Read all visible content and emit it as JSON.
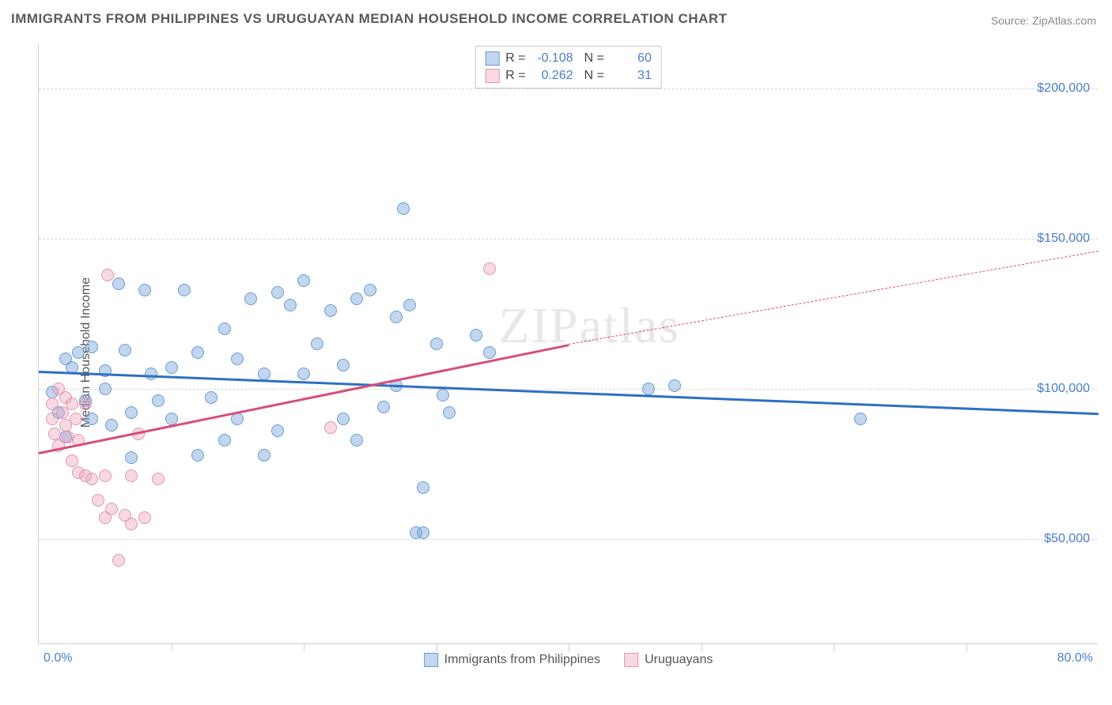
{
  "title": "IMMIGRANTS FROM PHILIPPINES VS URUGUAYAN MEDIAN HOUSEHOLD INCOME CORRELATION CHART",
  "source": {
    "label": "Source:",
    "value": "ZipAtlas.com"
  },
  "watermark": "ZIPatlas",
  "chart": {
    "type": "scatter",
    "background_color": "#ffffff",
    "grid_color": "#d8d8d8",
    "axis_color": "#cfcfcf",
    "label_color": "#4a7ec9",
    "text_color": "#555555",
    "y_axis_title": "Median Household Income",
    "xlim": [
      0,
      80
    ],
    "ylim": [
      15000,
      215000
    ],
    "x_tick_labels": {
      "left": "0.0%",
      "right": "80.0%"
    },
    "x_minor_ticks": [
      10,
      20,
      30,
      40,
      50,
      60,
      70
    ],
    "y_gridlines": [
      {
        "value": 50000,
        "label": "$50,000"
      },
      {
        "value": 100000,
        "label": "$100,000"
      },
      {
        "value": 150000,
        "label": "$150,000"
      },
      {
        "value": 200000,
        "label": "$200,000"
      }
    ],
    "series": [
      {
        "name": "Immigrants from Philippines",
        "fill_color": "rgba(120,165,216,0.45)",
        "stroke_color": "#6a9bd6",
        "trend_color": "#2e6fc4",
        "R": "-0.108",
        "N": "60",
        "trend": {
          "x1": 0,
          "y1": 106000,
          "x2": 80,
          "y2": 92000
        },
        "points": [
          [
            1,
            99000
          ],
          [
            1.5,
            92000
          ],
          [
            2,
            110000
          ],
          [
            2,
            84000
          ],
          [
            2.5,
            107000
          ],
          [
            3,
            112000
          ],
          [
            3.5,
            96000
          ],
          [
            4,
            114000
          ],
          [
            4,
            90000
          ],
          [
            5,
            100000
          ],
          [
            5,
            106000
          ],
          [
            5.5,
            88000
          ],
          [
            6,
            135000
          ],
          [
            6.5,
            113000
          ],
          [
            7,
            77000
          ],
          [
            7,
            92000
          ],
          [
            8,
            133000
          ],
          [
            8.5,
            105000
          ],
          [
            9,
            96000
          ],
          [
            10,
            107000
          ],
          [
            10,
            90000
          ],
          [
            11,
            133000
          ],
          [
            12,
            78000
          ],
          [
            12,
            112000
          ],
          [
            13,
            97000
          ],
          [
            14,
            120000
          ],
          [
            14,
            83000
          ],
          [
            15,
            110000
          ],
          [
            15,
            90000
          ],
          [
            16,
            130000
          ],
          [
            17,
            78000
          ],
          [
            17,
            105000
          ],
          [
            18,
            132000
          ],
          [
            18,
            86000
          ],
          [
            19,
            128000
          ],
          [
            20,
            136000
          ],
          [
            20,
            105000
          ],
          [
            21,
            115000
          ],
          [
            22,
            126000
          ],
          [
            23,
            90000
          ],
          [
            23,
            108000
          ],
          [
            24,
            83000
          ],
          [
            24,
            130000
          ],
          [
            25,
            133000
          ],
          [
            26,
            94000
          ],
          [
            27,
            101000
          ],
          [
            27,
            124000
          ],
          [
            27.5,
            160000
          ],
          [
            28,
            128000
          ],
          [
            28.5,
            52000
          ],
          [
            29,
            52000
          ],
          [
            29,
            67000
          ],
          [
            30,
            115000
          ],
          [
            30.5,
            98000
          ],
          [
            31,
            92000
          ],
          [
            33,
            118000
          ],
          [
            34,
            112000
          ],
          [
            46,
            100000
          ],
          [
            48,
            101000
          ],
          [
            62,
            90000
          ]
        ]
      },
      {
        "name": "Uruguayans",
        "fill_color": "rgba(235,160,185,0.40)",
        "stroke_color": "#e295b0",
        "trend_color": "#d64e7a",
        "R": "0.262",
        "N": "31",
        "trend_solid": {
          "x1": 0,
          "y1": 79000,
          "x2": 40,
          "y2": 115000
        },
        "trend_dashed": {
          "x1": 40,
          "y1": 115000,
          "x2": 80,
          "y2": 146000
        },
        "points": [
          [
            1,
            95000
          ],
          [
            1,
            90000
          ],
          [
            1.2,
            85000
          ],
          [
            1.5,
            100000
          ],
          [
            1.5,
            81000
          ],
          [
            1.8,
            92000
          ],
          [
            2,
            97000
          ],
          [
            2,
            88000
          ],
          [
            2.2,
            84000
          ],
          [
            2.5,
            95000
          ],
          [
            2.5,
            76000
          ],
          [
            2.8,
            90000
          ],
          [
            3,
            72000
          ],
          [
            3,
            83000
          ],
          [
            3.5,
            95000
          ],
          [
            3.5,
            71000
          ],
          [
            4,
            70000
          ],
          [
            4.5,
            63000
          ],
          [
            5,
            57000
          ],
          [
            5,
            71000
          ],
          [
            5.2,
            138000
          ],
          [
            5.5,
            60000
          ],
          [
            6,
            43000
          ],
          [
            6.5,
            58000
          ],
          [
            7,
            71000
          ],
          [
            7,
            55000
          ],
          [
            7.5,
            85000
          ],
          [
            8,
            57000
          ],
          [
            9,
            70000
          ],
          [
            22,
            87000
          ],
          [
            34,
            140000
          ]
        ]
      }
    ],
    "bottom_legend": [
      {
        "swatch_fill": "rgba(120,165,216,0.45)",
        "swatch_stroke": "#6a9bd6",
        "label": "Immigrants from Philippines"
      },
      {
        "swatch_fill": "rgba(235,160,185,0.40)",
        "swatch_stroke": "#e295b0",
        "label": "Uruguayans"
      }
    ],
    "top_legend_labels": {
      "R": "R =",
      "N": "N ="
    }
  }
}
